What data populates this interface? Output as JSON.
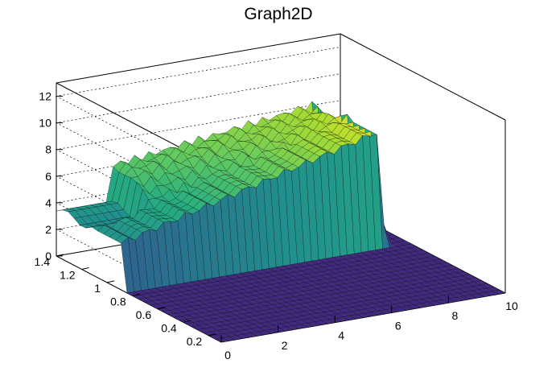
{
  "chart_data": {
    "type": "surface",
    "title": "Graph2D",
    "xlabel": "",
    "ylabel": "",
    "zlabel": "",
    "xlim": [
      0,
      10
    ],
    "ylim": [
      0.1,
      1.4
    ],
    "zlim": [
      0,
      13
    ],
    "x_ticks": [
      "0",
      "2",
      "4",
      "6",
      "8",
      "10"
    ],
    "y_ticks": [
      "0.2",
      "0.4",
      "0.6",
      "0.8",
      "1",
      "1.2",
      "1.4"
    ],
    "z_ticks": [
      "0",
      "2",
      "4",
      "6",
      "8",
      "10",
      "12"
    ],
    "grid": true,
    "colormap": "viridis",
    "description_values": {
      "floor_z": 0,
      "wall_y_range": [
        0.85,
        1.1
      ],
      "wall_height_at_x0": 3.5,
      "wall_height_at_x9": 8.5,
      "drop_after_x": 9.0,
      "back_plateau_z": [
        5.5,
        8.0
      ]
    }
  }
}
